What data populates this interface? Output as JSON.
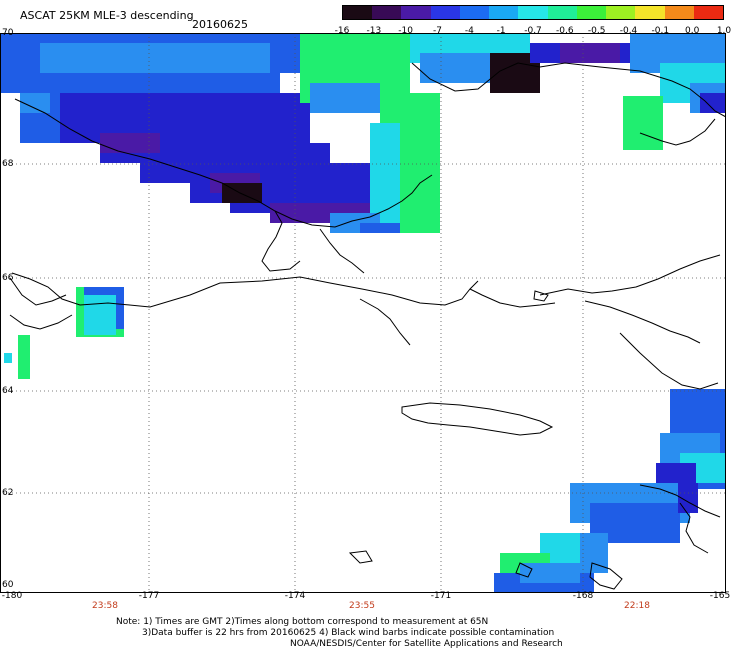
{
  "header": {
    "title": "ASCAT 25KM MLE-3 descending",
    "date": "20160625"
  },
  "colorbar": {
    "labels": [
      "-16",
      "-13",
      "-10",
      "-7",
      "-4",
      "-1",
      "-0.7",
      "-0.6",
      "-0.5",
      "-0.4",
      "-0.1",
      "0.0",
      "1.0"
    ],
    "colors": [
      "#1a0a14",
      "#380a56",
      "#4a1aa6",
      "#2a36e6",
      "#1c6cf2",
      "#1aa8f4",
      "#26e6e8",
      "#20ee98",
      "#3cf03a",
      "#9ef022",
      "#f4e42a",
      "#f48a1a",
      "#ea2a12"
    ]
  },
  "axes": {
    "lat_labels": [
      "70",
      "68",
      "66",
      "64",
      "62",
      "60"
    ],
    "lon_labels": [
      "-180",
      "-177",
      "-174",
      "-171",
      "-168",
      "-165"
    ]
  },
  "pass_times": [
    "23:58",
    "23:55",
    "22:18"
  ],
  "notes": {
    "line1": "Note: 1) Times are GMT 2)Times along bottom correspond to measurement at 65N",
    "line2": "3)Data buffer is 22 hrs from 20160625 4) Black wind barbs indicate possible contamination",
    "line3": "NOAA/NESDIS/Center for Satellite Applications and Research"
  },
  "map_colors": {
    "navy": "#2222cc",
    "blue": "#1f5de6",
    "mid_blue": "#2a8ef0",
    "cyan": "#20d8e8",
    "green": "#20ee70",
    "purple": "#4a1aa6",
    "dark": "#1a0a14",
    "land": "#000000"
  }
}
